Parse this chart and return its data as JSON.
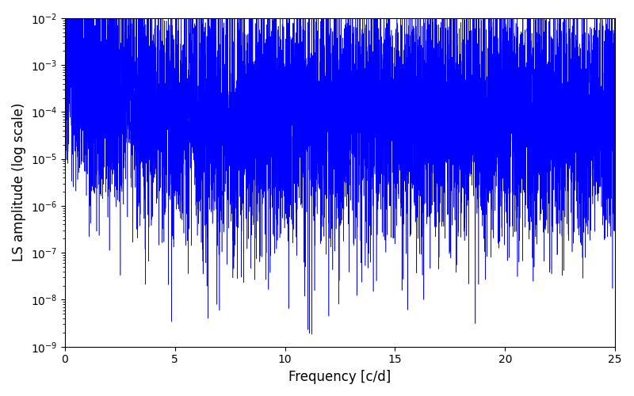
{
  "xlabel": "Frequency [c/d]",
  "ylabel": "LS amplitude (log scale)",
  "xlim": [
    0,
    25
  ],
  "ylim": [
    1e-09,
    0.01
  ],
  "line_color": "#0000ff",
  "linewidth": 0.4,
  "figsize": [
    8.0,
    5.0
  ],
  "dpi": 100,
  "yscale": "log",
  "xticks": [
    0,
    5,
    10,
    15,
    20,
    25
  ],
  "background_color": "#ffffff",
  "N_points": 8000,
  "seed": 137
}
